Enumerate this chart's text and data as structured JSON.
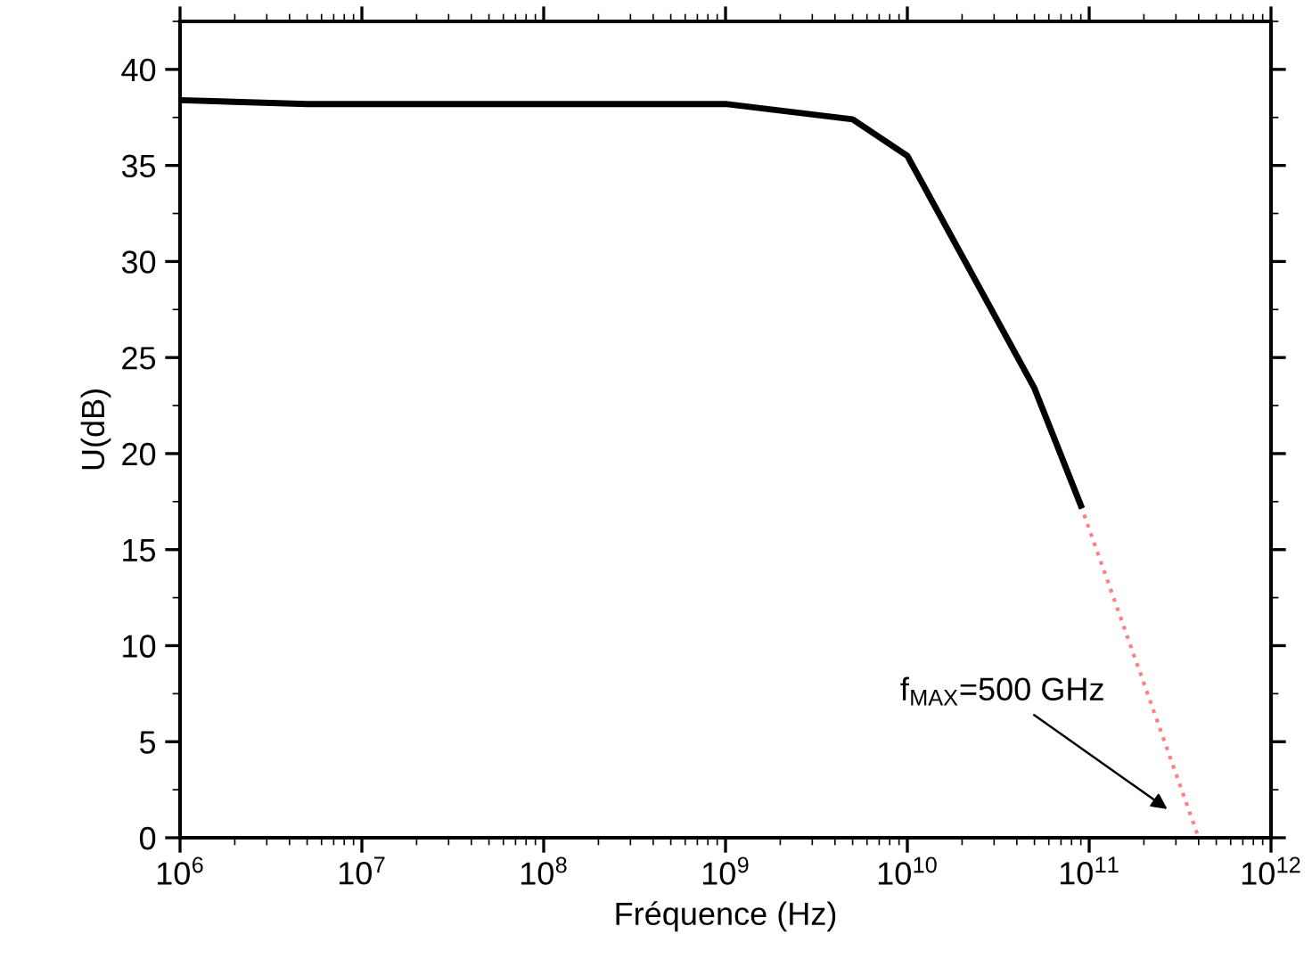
{
  "chart_data": {
    "type": "line",
    "xlabel": "Fréquence (Hz)",
    "ylabel": "U(dB)",
    "log": "x",
    "x": [
      1000000.0,
      5000000.0,
      1000000000.0,
      5000000000.0,
      10000000000.0,
      50000000000.0,
      90000000000.0
    ],
    "series": [
      {
        "color": "#000000",
        "values": [
          38.4,
          38.2,
          38.2,
          37.4,
          35.5,
          23.4,
          17.3
        ],
        "line_style": "solid"
      },
      {
        "color": "#ff8080",
        "x": [
          90000000000.0,
          400000000000.0
        ],
        "values": [
          17.3,
          0
        ],
        "line_style": "dotted"
      }
    ],
    "xlim": [
      1000000.0,
      1000000000000.0
    ],
    "ylim": [
      0,
      42.5
    ],
    "xticks": [
      {
        "value": 1000000.0,
        "label": "10$^{6}$"
      },
      {
        "value": 10000000.0,
        "label": "10$^{7}$"
      },
      {
        "value": 100000000.0,
        "label": "10$^{8}$"
      },
      {
        "value": 1000000000.0,
        "label": "10$^{9}$"
      },
      {
        "value": 10000000000.0,
        "label": "10$^{10}$"
      },
      {
        "value": 100000000000.0,
        "label": "10$^{11}$"
      },
      {
        "value": 1000000000000.0,
        "label": "10$^{12}$"
      }
    ],
    "yticks": [
      0,
      5,
      10,
      15,
      20,
      25,
      30,
      35,
      40
    ],
    "annotations": [
      "f$_{MAX}$=500 GHz"
    ],
    "grid": false,
    "legend": false,
    "marker": "none"
  }
}
